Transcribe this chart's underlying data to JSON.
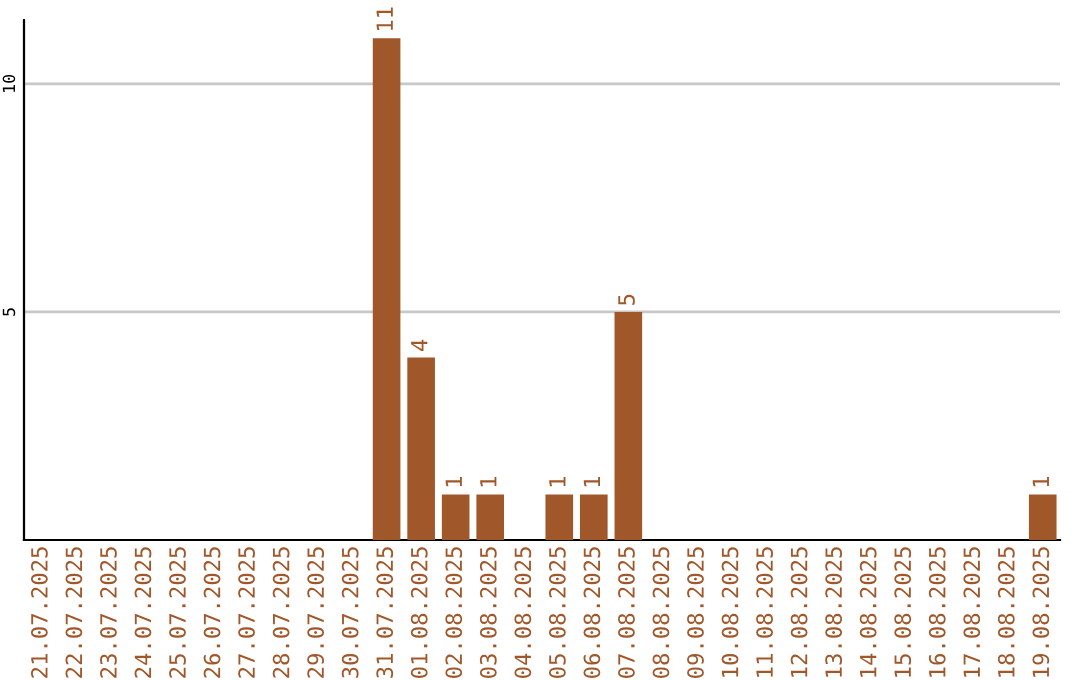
{
  "chart_data": {
    "type": "bar",
    "categories": [
      "21.07.2025",
      "22.07.2025",
      "23.07.2025",
      "24.07.2025",
      "25.07.2025",
      "26.07.2025",
      "27.07.2025",
      "28.07.2025",
      "29.07.2025",
      "30.07.2025",
      "31.07.2025",
      "01.08.2025",
      "02.08.2025",
      "03.08.2025",
      "04.08.2025",
      "05.08.2025",
      "06.08.2025",
      "07.08.2025",
      "08.08.2025",
      "09.08.2025",
      "10.08.2025",
      "11.08.2025",
      "12.08.2025",
      "13.08.2025",
      "14.08.2025",
      "15.08.2025",
      "16.08.2025",
      "17.08.2025",
      "18.08.2025",
      "19.08.2025"
    ],
    "values": [
      0,
      0,
      0,
      0,
      0,
      0,
      0,
      0,
      0,
      0,
      11,
      4,
      1,
      1,
      0,
      1,
      1,
      5,
      0,
      0,
      0,
      0,
      0,
      0,
      0,
      0,
      0,
      0,
      0,
      1
    ],
    "value_labels": [
      null,
      null,
      null,
      null,
      null,
      null,
      null,
      null,
      null,
      null,
      "11",
      "4",
      "1",
      "1",
      null,
      "1",
      "1",
      "5",
      null,
      null,
      null,
      null,
      null,
      null,
      null,
      null,
      null,
      null,
      null,
      "1"
    ],
    "color": "#a0572a",
    "ylim": [
      0,
      11.4
    ],
    "yticks": [
      5,
      10
    ],
    "grid": "y"
  }
}
